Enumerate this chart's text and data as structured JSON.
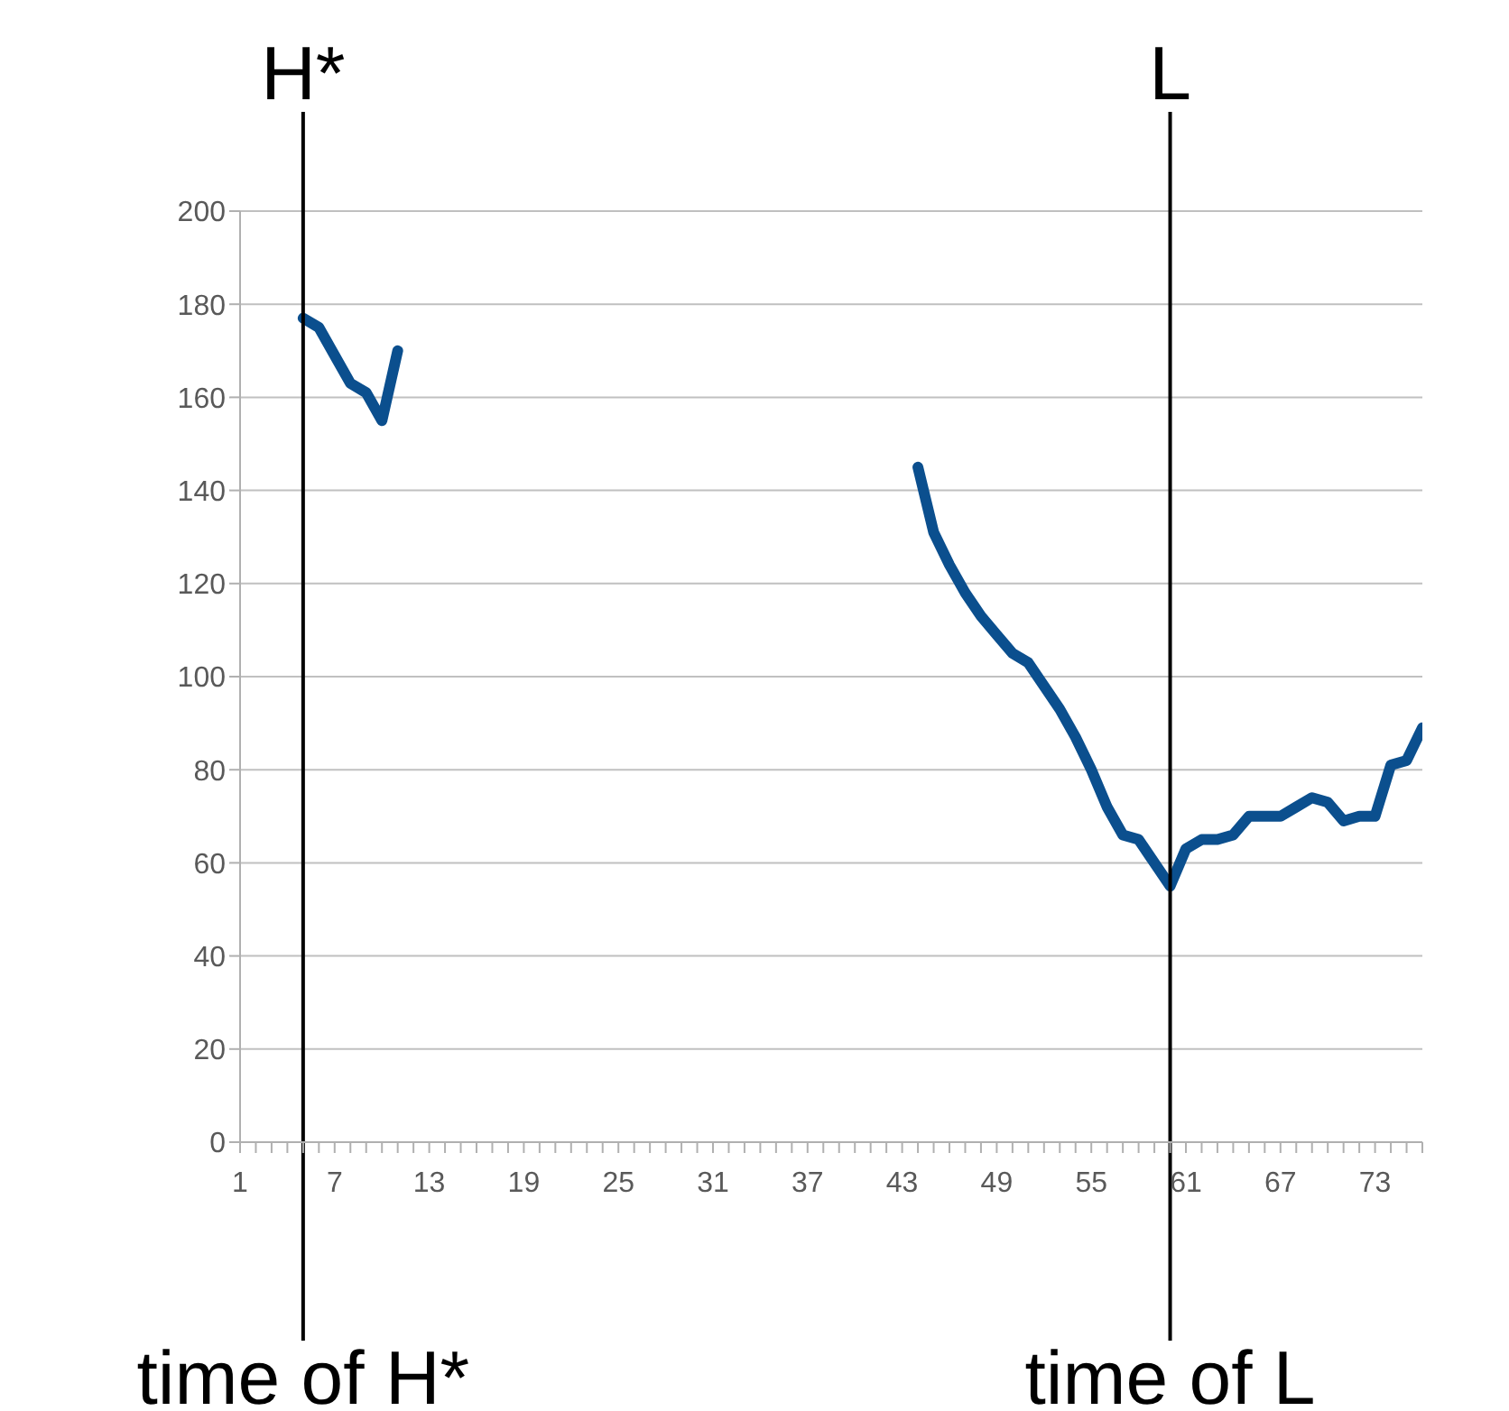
{
  "chart_data": {
    "type": "line",
    "x": [
      5,
      6,
      7,
      8,
      9,
      10,
      11,
      12,
      44,
      45,
      46,
      47,
      48,
      49,
      50,
      51,
      52,
      53,
      54,
      55,
      56,
      57,
      58,
      59,
      60,
      61,
      62,
      63,
      64,
      65,
      66,
      67,
      68,
      69,
      70,
      71,
      72,
      73,
      74,
      75,
      76
    ],
    "series": [
      {
        "color": "#0b4f8e",
        "values": [
          177,
          175,
          169,
          163,
          161,
          155,
          170,
          null,
          145,
          131,
          124,
          118,
          113,
          109,
          105,
          103,
          98,
          93,
          87,
          80,
          72,
          66,
          65,
          60,
          55,
          63,
          65,
          65,
          66,
          70,
          70,
          70,
          72,
          74,
          73,
          69,
          70,
          70,
          81,
          82,
          89
        ]
      }
    ],
    "xlim": [
      1,
      76
    ],
    "xticks": [
      1,
      {
        "value": 2,
        "label": null
      },
      {
        "value": 3,
        "label": null
      },
      {
        "value": 4,
        "label": null
      },
      {
        "value": 5,
        "label": null
      },
      {
        "value": 6,
        "label": null
      },
      7,
      {
        "value": 8,
        "label": null
      },
      {
        "value": 9,
        "label": null
      },
      {
        "value": 10,
        "label": null
      },
      {
        "value": 11,
        "label": null
      },
      {
        "value": 12,
        "label": null
      },
      13,
      {
        "value": 14,
        "label": null
      },
      {
        "value": 15,
        "label": null
      },
      {
        "value": 16,
        "label": null
      },
      {
        "value": 17,
        "label": null
      },
      {
        "value": 18,
        "label": null
      },
      19,
      {
        "value": 20,
        "label": null
      },
      {
        "value": 21,
        "label": null
      },
      {
        "value": 22,
        "label": null
      },
      {
        "value": 23,
        "label": null
      },
      {
        "value": 24,
        "label": null
      },
      25,
      {
        "value": 26,
        "label": null
      },
      {
        "value": 27,
        "label": null
      },
      {
        "value": 28,
        "label": null
      },
      {
        "value": 29,
        "label": null
      },
      {
        "value": 30,
        "label": null
      },
      31,
      {
        "value": 32,
        "label": null
      },
      {
        "value": 33,
        "label": null
      },
      {
        "value": 34,
        "label": null
      },
      {
        "value": 35,
        "label": null
      },
      {
        "value": 36,
        "label": null
      },
      37,
      {
        "value": 38,
        "label": null
      },
      {
        "value": 39,
        "label": null
      },
      {
        "value": 40,
        "label": null
      },
      {
        "value": 41,
        "label": null
      },
      {
        "value": 42,
        "label": null
      },
      43,
      {
        "value": 44,
        "label": null
      },
      {
        "value": 45,
        "label": null
      },
      {
        "value": 46,
        "label": null
      },
      {
        "value": 47,
        "label": null
      },
      {
        "value": 48,
        "label": null
      },
      49,
      {
        "value": 50,
        "label": null
      },
      {
        "value": 51,
        "label": null
      },
      {
        "value": 52,
        "label": null
      },
      {
        "value": 53,
        "label": null
      },
      {
        "value": 54,
        "label": null
      },
      55,
      {
        "value": 56,
        "label": null
      },
      {
        "value": 57,
        "label": null
      },
      {
        "value": 58,
        "label": null
      },
      {
        "value": 59,
        "label": null
      },
      {
        "value": 60,
        "label": null
      },
      61,
      {
        "value": 62,
        "label": null
      },
      {
        "value": 63,
        "label": null
      },
      {
        "value": 64,
        "label": null
      },
      {
        "value": 65,
        "label": null
      },
      {
        "value": 66,
        "label": null
      },
      67,
      {
        "value": 68,
        "label": null
      },
      {
        "value": 69,
        "label": null
      },
      {
        "value": 70,
        "label": null
      },
      {
        "value": 71,
        "label": null
      },
      {
        "value": 72,
        "label": null
      },
      73,
      {
        "value": 74,
        "label": null
      },
      {
        "value": 75,
        "label": null
      },
      {
        "value": 76,
        "label": null
      }
    ],
    "ylim": [
      0,
      200
    ],
    "yticks": [
      0,
      20,
      40,
      60,
      80,
      100,
      120,
      140,
      160,
      180,
      200
    ],
    "grid": "y",
    "legend": false,
    "marker": "none",
    "line_style": "solid",
    "ref_lines": [
      {
        "axis": "x",
        "value": 5,
        "label": "H*",
        "color": "#000000"
      },
      {
        "axis": "x",
        "value": 60,
        "label": "L",
        "color": "#000000"
      }
    ],
    "annotations": [
      {
        "text": "time of H*",
        "x": 5
      },
      {
        "text": "time of L",
        "x": 60
      }
    ]
  }
}
